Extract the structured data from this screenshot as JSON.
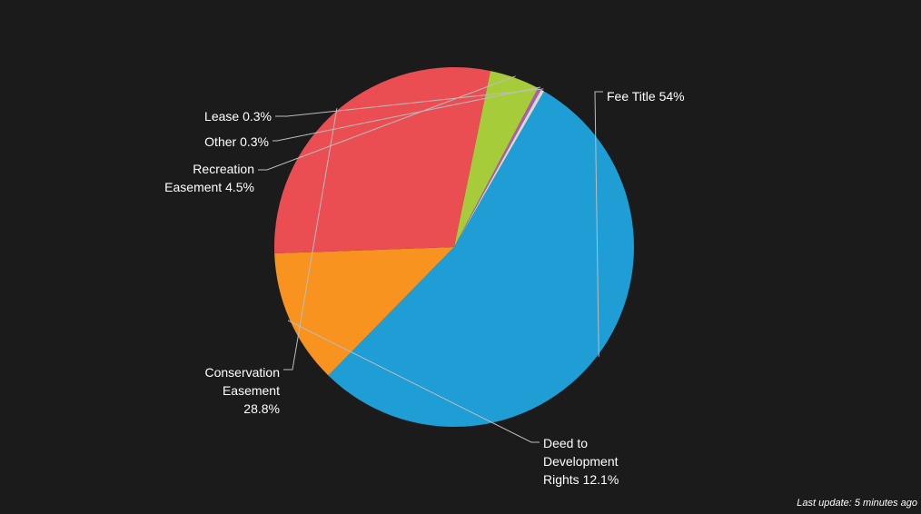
{
  "chart_data": {
    "type": "pie",
    "title": "",
    "start_angle_deg": -60,
    "slices": [
      {
        "label_lines": [
          "Fee Title 54%"
        ],
        "value": 54,
        "color": "#1f9ed6"
      },
      {
        "label_lines": [
          "Deed to",
          "Development",
          "Rights 12.1%"
        ],
        "value": 12.1,
        "color": "#f7931e"
      },
      {
        "label_lines": [
          "Conservation",
          "Easement",
          "28.8%"
        ],
        "value": 28.8,
        "color": "#ea4e53"
      },
      {
        "label_lines": [
          "Recreation",
          "Easement 4.5%"
        ],
        "value": 4.5,
        "color": "#a6cc3a"
      },
      {
        "label_lines": [
          "Other 0.3%"
        ],
        "value": 0.3,
        "color": "#b05ca8"
      },
      {
        "label_lines": [
          "Lease 0.3%"
        ],
        "value": 0.3,
        "color": "#d9d9d9"
      }
    ]
  },
  "footer": {
    "last_update": "Last update: 5 minutes ago"
  }
}
